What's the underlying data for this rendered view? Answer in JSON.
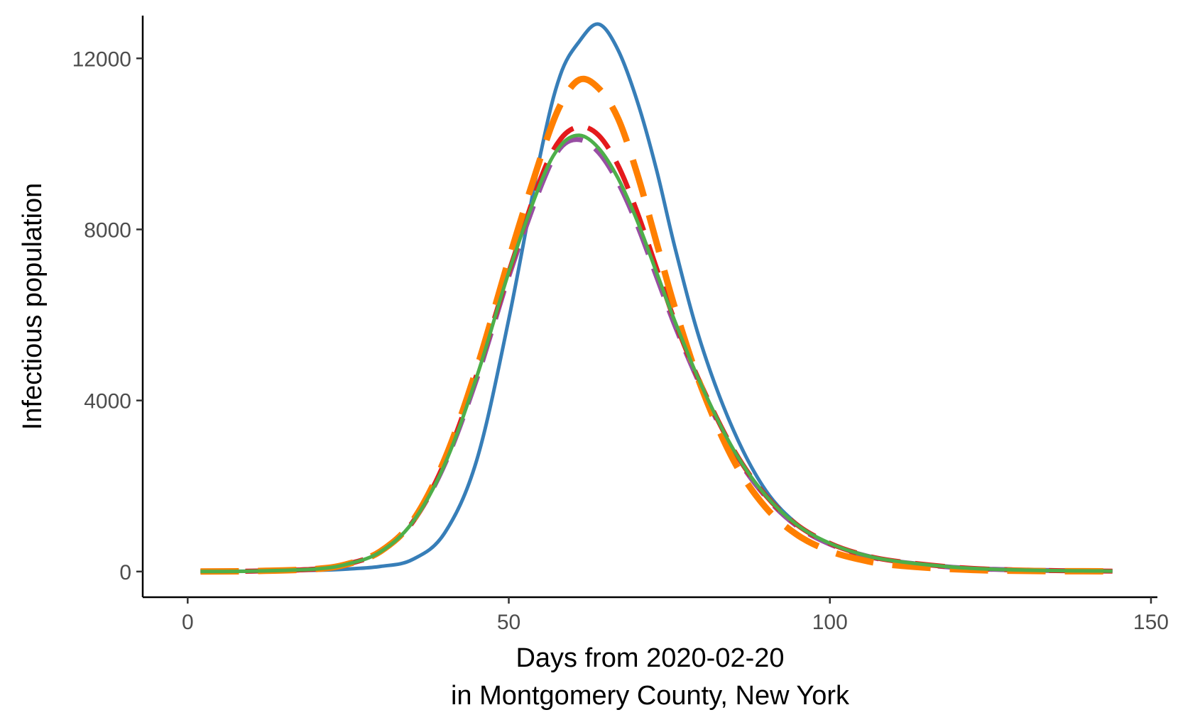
{
  "chart_data": {
    "type": "line",
    "title": "",
    "xlabel_lines": [
      "Days from 2020-02-20",
      "in Montgomery County, New York"
    ],
    "ylabel": "Infectious population",
    "xlim": [
      -7,
      151
    ],
    "ylim": [
      -600,
      13000
    ],
    "xticks": [
      0,
      50,
      100,
      150
    ],
    "yticks": [
      0,
      4000,
      8000,
      12000
    ],
    "grid": false,
    "series": [
      {
        "color": "#377EB8",
        "style": "solid",
        "width": 5,
        "x": [
          2,
          10,
          20,
          25,
          30,
          35,
          40,
          45,
          50,
          55,
          58,
          61,
          64,
          67,
          70,
          73,
          76,
          80,
          85,
          90,
          95,
          100,
          105,
          110,
          120,
          130,
          144
        ],
        "y": [
          0,
          10,
          30,
          60,
          120,
          280,
          900,
          2600,
          5900,
          9800,
          11600,
          12400,
          12800,
          12200,
          11000,
          9400,
          7500,
          5300,
          3300,
          1900,
          1100,
          650,
          400,
          250,
          100,
          40,
          15
        ]
      },
      {
        "color": "#984EA3",
        "style": "dashed",
        "width": 7,
        "x": [
          2,
          10,
          20,
          25,
          30,
          35,
          40,
          45,
          50,
          55,
          58,
          61,
          64,
          67,
          70,
          73,
          76,
          80,
          85,
          90,
          95,
          100,
          105,
          110,
          120,
          130,
          144
        ],
        "y": [
          0,
          10,
          60,
          180,
          460,
          1150,
          2500,
          4500,
          6900,
          9000,
          9900,
          10100,
          9800,
          9100,
          8100,
          6900,
          5700,
          4300,
          2800,
          1750,
          1050,
          640,
          390,
          240,
          90,
          35,
          10
        ]
      },
      {
        "color": "#E41A1C",
        "style": "dashed",
        "width": 7,
        "x": [
          2,
          10,
          20,
          25,
          30,
          35,
          40,
          45,
          50,
          55,
          58,
          61,
          64,
          67,
          70,
          73,
          76,
          80,
          85,
          90,
          95,
          100,
          105,
          110,
          120,
          130,
          144
        ],
        "y": [
          0,
          10,
          60,
          180,
          460,
          1150,
          2550,
          4600,
          7000,
          9200,
          10100,
          10400,
          10200,
          9500,
          8400,
          7100,
          5800,
          4350,
          2850,
          1780,
          1080,
          660,
          400,
          250,
          95,
          35,
          10
        ]
      },
      {
        "color": "#FF7F00",
        "style": "dashed",
        "width": 9,
        "x": [
          2,
          10,
          20,
          25,
          30,
          35,
          40,
          45,
          50,
          55,
          58,
          61,
          64,
          67,
          70,
          73,
          76,
          80,
          85,
          90,
          95,
          100,
          105,
          110,
          120,
          130,
          144
        ],
        "y": [
          0,
          10,
          60,
          180,
          470,
          1180,
          2620,
          4750,
          7300,
          9700,
          10900,
          11500,
          11300,
          10600,
          9300,
          7700,
          6100,
          4300,
          2600,
          1500,
          850,
          480,
          270,
          150,
          50,
          15,
          5
        ]
      },
      {
        "color": "#4DAF4A",
        "style": "solid",
        "width": 5,
        "x": [
          2,
          10,
          20,
          25,
          30,
          35,
          40,
          45,
          50,
          55,
          58,
          61,
          64,
          67,
          70,
          73,
          76,
          80,
          85,
          90,
          95,
          100,
          105,
          110,
          120,
          130,
          144
        ],
        "y": [
          0,
          10,
          60,
          180,
          460,
          1150,
          2500,
          4550,
          7000,
          9100,
          9950,
          10200,
          9900,
          9200,
          8200,
          7000,
          5800,
          4350,
          2850,
          1780,
          1080,
          660,
          400,
          250,
          95,
          35,
          10
        ]
      }
    ]
  }
}
